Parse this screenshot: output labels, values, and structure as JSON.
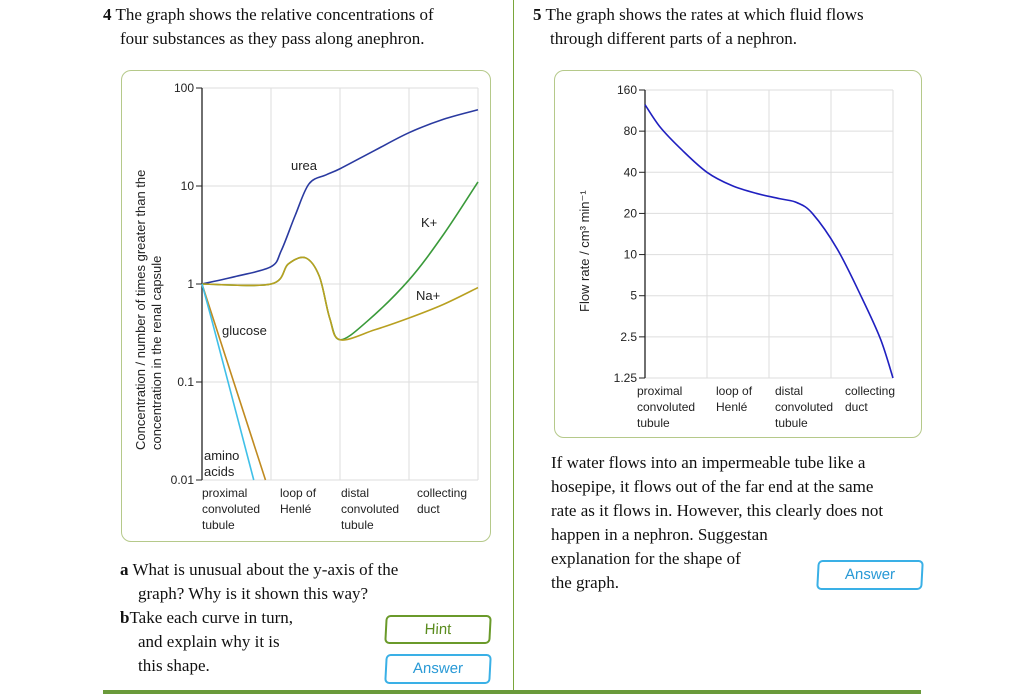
{
  "q4": {
    "number": "4",
    "prompt_line1": "The graph shows the relative concentrations of",
    "prompt_line2": "four substances as they pass along anephron.",
    "part_a_letter": "a",
    "part_a_line1": "What is unusual about the y-axis of the",
    "part_a_line2": "graph? Why is it shown this way?",
    "part_b_letter": "b",
    "part_b_line1": "Take each curve in turn,",
    "part_b_line2": "and explain why it is",
    "part_b_line3": "this shape.",
    "hint_label": "Hint",
    "answer_label": "Answer"
  },
  "q5": {
    "number": "5",
    "prompt_line1": "The graph shows the rates at which fluid flows",
    "prompt_line2": "through different parts of a nephron.",
    "body_lines": [
      "If water flows into an impermeable tube like a",
      "hosepipe, it flows out of the far end at the same",
      "rate as it flows in. However, this clearly does not",
      "happen in a nephron. Suggestan",
      "explanation for the shape of",
      "the graph."
    ],
    "answer_label": "Answer"
  },
  "colors": {
    "accent_green": "#6a9a2a",
    "accent_blue": "#3ab0e6",
    "divider": "#7aa63a"
  },
  "chart_data": [
    {
      "type": "line",
      "ylabel_line1": "Concentration / number of times greater than the",
      "ylabel_line2": "concentration in the renal capsule",
      "y_scale": "log",
      "ylim": [
        0.01,
        100
      ],
      "y_ticks": [
        "100",
        "10",
        "1",
        "0.1",
        "0.01"
      ],
      "categories": [
        [
          "proximal",
          "convoluted",
          "tubule"
        ],
        [
          "loop of",
          "Henlé"
        ],
        [
          "distal",
          "convoluted",
          "tubule"
        ],
        [
          "collecting",
          "duct"
        ]
      ],
      "grid": true,
      "series": [
        {
          "name": "urea",
          "color": "#2a3aa0",
          "points": [
            [
              0,
              1
            ],
            [
              0.5,
              1.2
            ],
            [
              1,
              1.5
            ],
            [
              1.15,
              2.2
            ],
            [
              1.35,
              5
            ],
            [
              1.55,
              10.5
            ],
            [
              1.8,
              13
            ],
            [
              2,
              15
            ],
            [
              2.5,
              23
            ],
            [
              3,
              35
            ],
            [
              3.5,
              48
            ],
            [
              4,
              60
            ]
          ]
        },
        {
          "name": "K+",
          "color": "#3a9a3a",
          "points": [
            [
              0,
              1
            ],
            [
              1,
              1
            ],
            [
              1.25,
              1.6
            ],
            [
              1.5,
              1.85
            ],
            [
              1.7,
              1.2
            ],
            [
              1.85,
              0.45
            ],
            [
              2,
              0.27
            ],
            [
              2.4,
              0.42
            ],
            [
              3,
              1.1
            ],
            [
              3.5,
              3.2
            ],
            [
              4,
              11
            ]
          ]
        },
        {
          "name": "Na+",
          "color": "#b8a020",
          "points": [
            [
              0,
              1
            ],
            [
              1,
              1
            ],
            [
              1.25,
              1.6
            ],
            [
              1.5,
              1.85
            ],
            [
              1.7,
              1.2
            ],
            [
              1.85,
              0.45
            ],
            [
              2,
              0.27
            ],
            [
              2.5,
              0.34
            ],
            [
              3,
              0.45
            ],
            [
              3.5,
              0.62
            ],
            [
              4,
              0.92
            ]
          ]
        },
        {
          "name": "glucose",
          "color": "#c08a20",
          "points": [
            [
              0,
              1
            ],
            [
              0.92,
              0.01
            ]
          ]
        },
        {
          "name": "amino acids",
          "color": "#40c0e8",
          "points": [
            [
              0,
              1
            ],
            [
              0.2,
              0.3
            ],
            [
              0.75,
              0.01
            ]
          ]
        }
      ]
    },
    {
      "type": "line",
      "ylabel": "Flow rate / cm³ min⁻¹",
      "y_scale": "log2",
      "ylim": [
        1.25,
        160
      ],
      "y_ticks": [
        "160",
        "80",
        "40",
        "20",
        "10",
        "5",
        "2.5",
        "1.25"
      ],
      "categories": [
        [
          "proximal",
          "convoluted",
          "tubule"
        ],
        [
          "loop of",
          "Henlé"
        ],
        [
          "distal",
          "convoluted",
          "tubule"
        ],
        [
          "collecting",
          "duct"
        ]
      ],
      "grid": true,
      "series": [
        {
          "color": "#2020c0",
          "points": [
            [
              0,
              125
            ],
            [
              0.25,
              85
            ],
            [
              0.6,
              58
            ],
            [
              1,
              40
            ],
            [
              1.4,
              32
            ],
            [
              1.8,
              28
            ],
            [
              2.2,
              25.5
            ],
            [
              2.45,
              24
            ],
            [
              2.7,
              20
            ],
            [
              3.1,
              11
            ],
            [
              3.5,
              4.8
            ],
            [
              3.8,
              2.4
            ],
            [
              4,
              1.25
            ]
          ]
        }
      ]
    }
  ]
}
